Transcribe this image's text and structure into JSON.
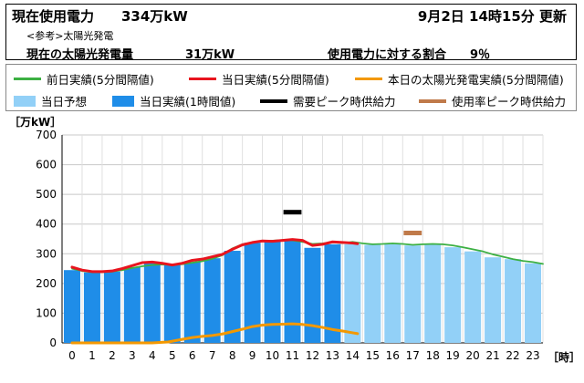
{
  "header": {
    "current_label": "現在使用電力",
    "current_value": "334万kW",
    "update_time": "9月2日 14時15分 更新",
    "ref_label": "<参考>太陽光発電",
    "solar_label": "現在の太陽光発電量",
    "solar_value": "31万kW",
    "ratio_label": "使用電力に対する割合",
    "ratio_value": "9％"
  },
  "legend": {
    "prev_day": "前日実績(5分間隔値)",
    "today_5min": "当日実績(5分間隔値)",
    "solar_today": "本日の太陽光発電実績(5分間隔値)",
    "forecast": "当日予想",
    "today_hourly": "当日実績(1時間値)",
    "demand_peak": "需要ピーク時供給力",
    "usage_peak": "使用率ピーク時供給力"
  },
  "colors": {
    "prev_day": "#3cb043",
    "today_5min": "#e8141e",
    "solar": "#f39800",
    "forecast": "#92d0f7",
    "hourly": "#1f8de8",
    "demand_peak": "#000000",
    "usage_peak": "#c07a4a"
  },
  "chart_data": {
    "type": "bar",
    "ylabel": "［万kW］",
    "xlabel": "［時］",
    "ylim": [
      0,
      700
    ],
    "yticks": [
      0,
      100,
      200,
      300,
      400,
      500,
      600,
      700
    ],
    "categories": [
      "0",
      "1",
      "2",
      "3",
      "4",
      "5",
      "6",
      "7",
      "8",
      "9",
      "10",
      "11",
      "12",
      "13",
      "14",
      "15",
      "16",
      "17",
      "18",
      "19",
      "20",
      "21",
      "22",
      "23"
    ],
    "grid": true,
    "series": [
      {
        "name": "当日実績(1時間値)",
        "kind": "bar",
        "x": [
          0,
          1,
          2,
          3,
          4,
          5,
          6,
          7,
          8,
          9,
          10,
          11,
          12,
          13
        ],
        "values": [
          245,
          237,
          240,
          255,
          268,
          265,
          272,
          285,
          310,
          337,
          343,
          345,
          320,
          332
        ]
      },
      {
        "name": "当日予想",
        "kind": "bar",
        "x": [
          14,
          15,
          16,
          17,
          18,
          19,
          20,
          21,
          22,
          23
        ],
        "values": [
          332,
          330,
          332,
          328,
          332,
          322,
          308,
          288,
          282,
          268
        ]
      },
      {
        "name": "前日実績(5分間隔値)",
        "kind": "line",
        "x": [
          0,
          0.5,
          1,
          1.5,
          2,
          2.5,
          3,
          3.5,
          4,
          4.5,
          5,
          5.5,
          6,
          6.5,
          7,
          7.5,
          8,
          8.5,
          9,
          9.5,
          10,
          10.5,
          11,
          11.5,
          12,
          12.5,
          13,
          13.5,
          14,
          14.5,
          15,
          15.5,
          16,
          16.5,
          17,
          17.5,
          18,
          18.5,
          19,
          19.5,
          20,
          20.5,
          21,
          21.5,
          22,
          22.5,
          23,
          23.5
        ],
        "values": [
          250,
          242,
          238,
          238,
          240,
          245,
          252,
          258,
          262,
          264,
          262,
          265,
          270,
          275,
          283,
          295,
          318,
          332,
          338,
          342,
          344,
          346,
          345,
          340,
          333,
          335,
          338,
          336,
          340,
          335,
          332,
          333,
          335,
          333,
          330,
          332,
          333,
          332,
          328,
          322,
          315,
          308,
          298,
          290,
          282,
          276,
          272,
          266
        ]
      },
      {
        "name": "当日実績(5分間隔値)",
        "kind": "line",
        "x": [
          0,
          0.5,
          1,
          1.5,
          2,
          2.5,
          3,
          3.5,
          4,
          4.5,
          5,
          5.5,
          6,
          6.5,
          7,
          7.5,
          8,
          8.5,
          9,
          9.5,
          10,
          10.5,
          11,
          11.5,
          12,
          12.5,
          13,
          13.5,
          14,
          14.25
        ],
        "values": [
          255,
          245,
          240,
          240,
          242,
          250,
          260,
          270,
          272,
          268,
          262,
          268,
          278,
          282,
          290,
          298,
          315,
          330,
          338,
          343,
          342,
          345,
          348,
          345,
          328,
          332,
          340,
          338,
          336,
          334
        ]
      },
      {
        "name": "本日の太陽光発電実績(5分間隔値)",
        "kind": "line",
        "x": [
          0,
          1,
          2,
          3,
          4,
          4.8,
          5.5,
          6,
          6.5,
          7,
          7.5,
          8,
          8.5,
          9,
          9.5,
          10,
          10.5,
          11,
          11.5,
          12,
          12.5,
          13,
          13.5,
          14,
          14.25
        ],
        "values": [
          0,
          0,
          0,
          0,
          0,
          3,
          12,
          18,
          22,
          25,
          30,
          38,
          46,
          55,
          60,
          62,
          63,
          64,
          62,
          58,
          52,
          45,
          40,
          34,
          31
        ]
      },
      {
        "name": "需要ピーク時供給力",
        "kind": "marker",
        "x": [
          11
        ],
        "values": [
          440
        ]
      },
      {
        "name": "使用率ピーク時供給力",
        "kind": "marker",
        "x": [
          17
        ],
        "values": [
          370
        ]
      }
    ]
  }
}
